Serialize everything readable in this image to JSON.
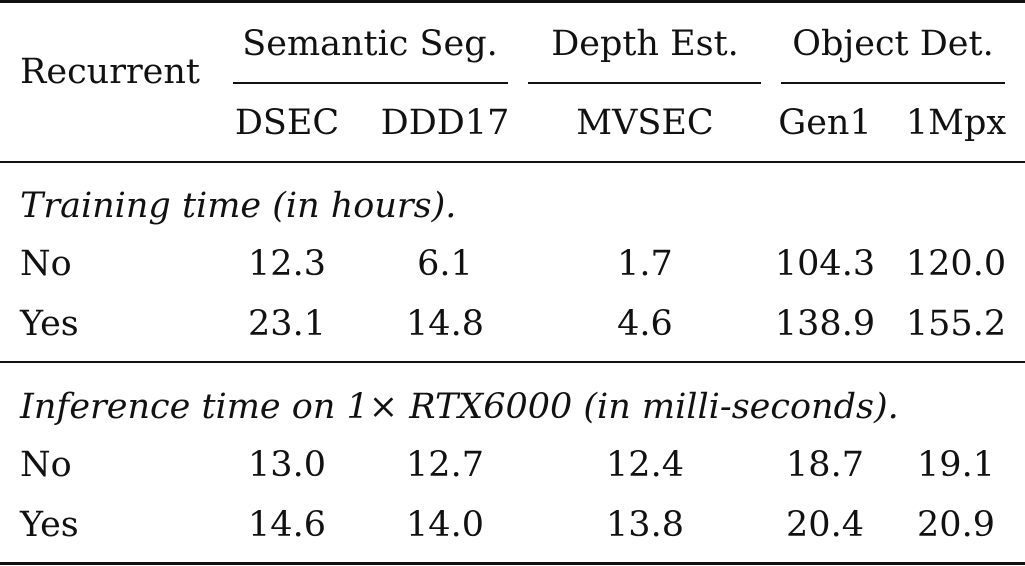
{
  "table": {
    "header": {
      "row_label": "Recurrent",
      "groups": [
        "Semantic Seg.",
        "Depth Est.",
        "Object Det."
      ],
      "columns": [
        "DSEC",
        "DDD17",
        "MVSEC",
        "Gen1",
        "1Mpx"
      ]
    },
    "sections": [
      {
        "title": "Training time (in hours).",
        "rows": [
          {
            "label": "No",
            "values": [
              "12.3",
              "6.1",
              "1.7",
              "104.3",
              "120.0"
            ]
          },
          {
            "label": "Yes",
            "values": [
              "23.1",
              "14.8",
              "4.6",
              "138.9",
              "155.2"
            ]
          }
        ]
      },
      {
        "title": "Inference time on 1× RTX6000 (in milli-seconds).",
        "rows": [
          {
            "label": "No",
            "values": [
              "13.0",
              "12.7",
              "12.4",
              "18.7",
              "19.1"
            ]
          },
          {
            "label": "Yes",
            "values": [
              "14.6",
              "14.0",
              "13.8",
              "20.4",
              "20.9"
            ]
          }
        ]
      }
    ]
  }
}
